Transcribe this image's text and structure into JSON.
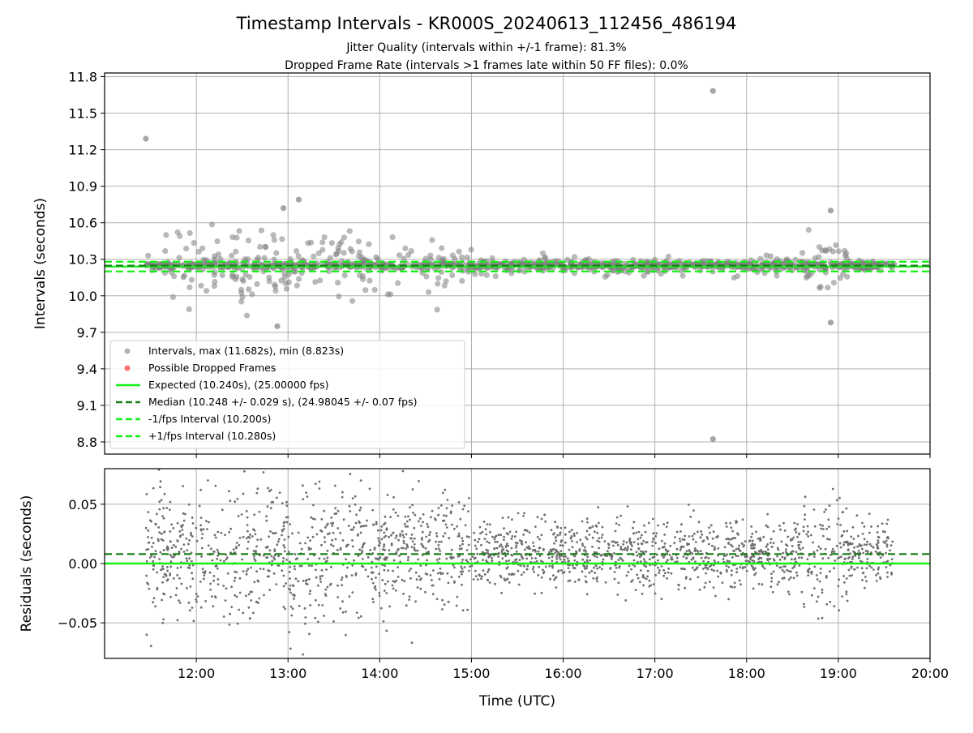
{
  "figure": {
    "title": "Timestamp Intervals - KR000S_20240613_112456_486194",
    "subtitle1": "Jitter Quality (intervals within +/-1 frame): 81.3%",
    "subtitle2": "Dropped Frame Rate (intervals >1 frames late within 50 FF files): 0.0%"
  },
  "colors": {
    "points": "#808080",
    "dropped": "#ff4d4d",
    "expected": "#14f014",
    "median": "#137f13",
    "grid": "#b0b0b0"
  },
  "chart_data": [
    {
      "type": "scatter",
      "panel": "top",
      "ylabel": "Intervals (seconds)",
      "ylim": [
        8.7,
        11.83
      ],
      "yticks": [
        "8.8",
        "9.1",
        "9.4",
        "9.7",
        "10.0",
        "10.3",
        "10.6",
        "10.9",
        "11.2",
        "11.5",
        "11.8"
      ],
      "xlim_hours": [
        11.0,
        20.0
      ],
      "grid": true,
      "legend_position": "lower-left",
      "reference_lines": {
        "expected": 10.24,
        "median": 10.248,
        "minus_one_fps": 10.2,
        "plus_one_fps": 10.28
      },
      "legend": [
        "Intervals, max (11.682s), min (8.823s)",
        "Possible Dropped Frames",
        "Expected (10.240s), (25.00000 fps)",
        "Median (10.248 +/- 0.029 s), (24.98045 +/- 0.07 fps)",
        "-1/fps Interval (10.200s)",
        "+1/fps Interval (10.280s)"
      ],
      "notable_points": [
        {
          "x": "11:27",
          "y": 11.29
        },
        {
          "x": "17:38",
          "y": 11.682
        },
        {
          "x": "17:38",
          "y": 8.823
        },
        {
          "x": "13:07",
          "y": 10.79
        },
        {
          "x": "18:55",
          "y": 10.7
        },
        {
          "x": "12:57",
          "y": 10.72
        },
        {
          "x": "12:53",
          "y": 9.75
        },
        {
          "x": "18:55",
          "y": 9.78
        }
      ],
      "point_count_estimate": 2800,
      "center": 10.248
    },
    {
      "type": "scatter",
      "panel": "bottom",
      "ylabel": "Residuals (seconds)",
      "xlabel": "Time (UTC)",
      "ylim": [
        -0.08,
        0.08
      ],
      "yticks": [
        "−0.05",
        "0.00",
        "0.05"
      ],
      "xlim_hours": [
        11.0,
        20.0
      ],
      "xticks": [
        "12:00",
        "13:00",
        "14:00",
        "15:00",
        "16:00",
        "17:00",
        "18:00",
        "19:00",
        "20:00"
      ],
      "grid": true,
      "reference_lines": {
        "zero": 0.0,
        "median_offset": 0.008
      },
      "point_count_estimate": 2400
    }
  ]
}
